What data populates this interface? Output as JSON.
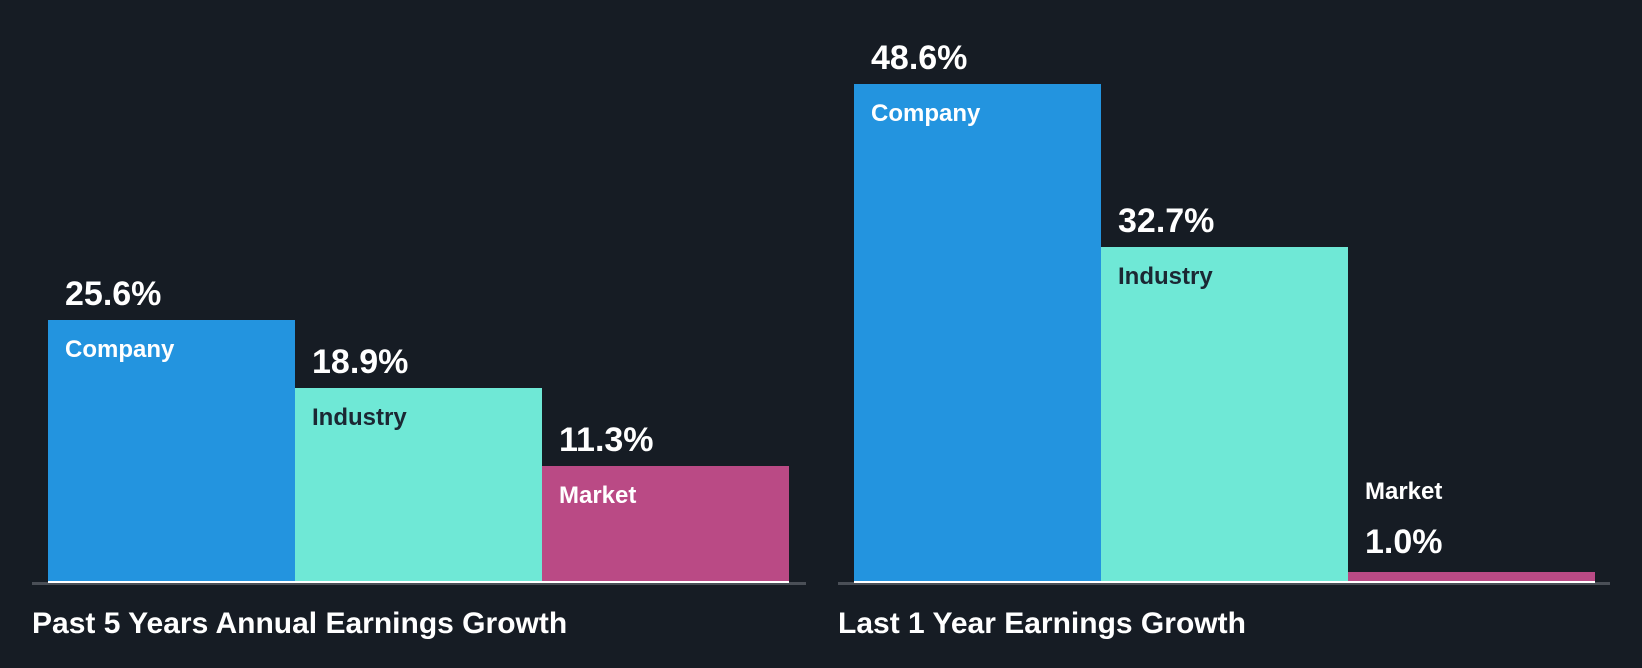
{
  "colors": {
    "background": "#161C24",
    "company": "#2394DF",
    "industry": "#6FE8D6",
    "market": "#BA4A85",
    "industry_label": "#1B2733",
    "axis": "#4A4F57"
  },
  "chart_data": [
    {
      "type": "bar",
      "title": "Past 5 Years Annual Earnings Growth",
      "categories": [
        "Company",
        "Industry",
        "Market"
      ],
      "values": [
        25.6,
        18.9,
        11.3
      ],
      "value_labels": [
        "25.6%",
        "18.9%",
        "11.3%"
      ],
      "xlabel": "",
      "ylabel": "",
      "ylim": [
        0,
        50
      ],
      "grid": false,
      "legend": "none"
    },
    {
      "type": "bar",
      "title": "Last 1 Year Earnings Growth",
      "categories": [
        "Company",
        "Industry",
        "Market"
      ],
      "values": [
        48.6,
        32.7,
        1.0
      ],
      "value_labels": [
        "48.6%",
        "32.7%",
        "1.0%"
      ],
      "xlabel": "",
      "ylabel": "",
      "ylim": [
        0,
        50
      ],
      "grid": false,
      "legend": "none"
    }
  ]
}
